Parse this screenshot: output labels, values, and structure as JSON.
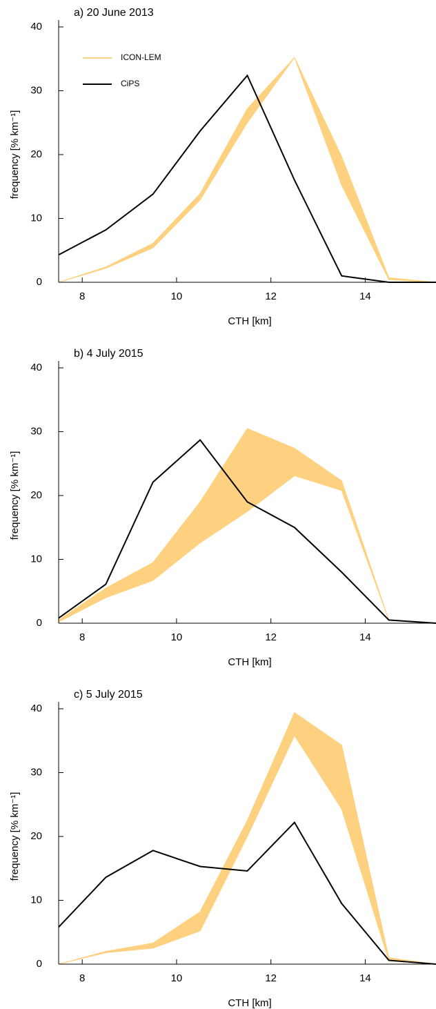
{
  "chart_data": [
    {
      "type": "band-line",
      "title": "a) 20 June 2013",
      "xlabel": "CTH [km]",
      "ylabel": "frequency [% km⁻¹]",
      "x": [
        7.5,
        8.5,
        9.5,
        10.5,
        11.5,
        12.5,
        13.5,
        14.5,
        15.5
      ],
      "xlim": [
        7.5,
        15.5
      ],
      "xticks": [
        8,
        10,
        12,
        14
      ],
      "ylim": [
        0,
        40
      ],
      "yticks": [
        0,
        10,
        20,
        30,
        40
      ],
      "legend": "upper left",
      "series": [
        {
          "name": "ICON-LEM",
          "color": "#fdd17f",
          "lower": [
            0,
            2.2,
            5.4,
            12.9,
            25,
            35.2,
            15.2,
            0.4,
            0
          ],
          "upper": [
            0,
            2.4,
            6.1,
            13.9,
            27.2,
            35.2,
            19.7,
            0.7,
            0
          ]
        },
        {
          "name": "CiPS",
          "color": "#000000",
          "values": [
            4.3,
            8.2,
            13.8,
            23.7,
            32.4,
            16,
            1,
            0,
            0
          ]
        }
      ]
    },
    {
      "type": "band-line",
      "title": "b) 4 July 2015",
      "xlabel": "CTH [km]",
      "ylabel": "frequency [% km⁻¹]",
      "x": [
        7.5,
        8.5,
        9.5,
        10.5,
        11.5,
        12.5,
        13.5,
        14.5,
        15.5
      ],
      "xlim": [
        7.5,
        15.5
      ],
      "xticks": [
        8,
        10,
        12,
        14
      ],
      "ylim": [
        0,
        40
      ],
      "yticks": [
        0,
        10,
        20,
        30,
        40
      ],
      "series": [
        {
          "name": "ICON-LEM",
          "color": "#fdd17f",
          "lower": [
            0.2,
            4,
            6.7,
            12.6,
            17.5,
            23.1,
            20.8,
            0.5,
            null
          ],
          "upper": [
            0.5,
            5.5,
            9.5,
            19,
            30.5,
            27.4,
            22.3,
            0.5,
            null
          ]
        },
        {
          "name": "CiPS",
          "color": "#000000",
          "values": [
            0.8,
            6.1,
            22.1,
            28.7,
            19,
            15,
            8,
            0.5,
            0
          ]
        }
      ]
    },
    {
      "type": "band-line",
      "title": "c) 5 July 2015",
      "xlabel": "CTH [km]",
      "ylabel": "frequency [% km⁻¹]",
      "x": [
        7.5,
        8.5,
        9.5,
        10.5,
        11.5,
        12.5,
        13.5,
        14.5,
        15.5
      ],
      "xlim": [
        7.5,
        15.5
      ],
      "xticks": [
        8,
        10,
        12,
        14
      ],
      "ylim": [
        0,
        40
      ],
      "yticks": [
        0,
        10,
        20,
        30,
        40
      ],
      "series": [
        {
          "name": "ICON-LEM",
          "color": "#fdd17f",
          "lower": [
            0,
            1.8,
            2.5,
            5.2,
            20,
            35.8,
            24.3,
            0.5,
            0
          ],
          "upper": [
            0,
            2,
            3.3,
            8.2,
            22.5,
            39.4,
            34.3,
            1,
            0
          ]
        },
        {
          "name": "CiPS",
          "color": "#000000",
          "values": [
            5.8,
            13.6,
            17.8,
            15.3,
            14.6,
            22.2,
            9.5,
            0.6,
            0
          ]
        }
      ]
    }
  ]
}
